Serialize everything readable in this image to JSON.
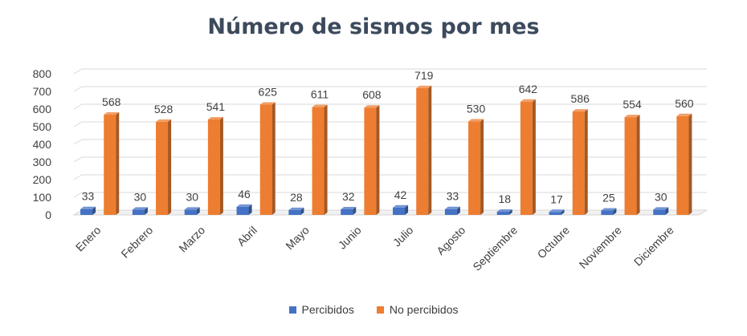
{
  "chart_data": {
    "type": "bar",
    "title": "Número de sismos por mes",
    "categories": [
      "Enero",
      "Febrero",
      "Marzo",
      "Abril",
      "Mayo",
      "Junio",
      "Julio",
      "Agosto",
      "Septiembre",
      "Octubre",
      "Noviembre",
      "Diciembre"
    ],
    "series": [
      {
        "name": "Percibidos",
        "values": [
          33,
          30,
          30,
          46,
          28,
          32,
          42,
          33,
          18,
          17,
          25,
          30
        ],
        "color": "#4472c4"
      },
      {
        "name": "No percibidos",
        "values": [
          568,
          528,
          541,
          625,
          611,
          608,
          719,
          530,
          642,
          586,
          554,
          560
        ],
        "color": "#ed7d31"
      }
    ],
    "ylim": [
      0,
      800
    ],
    "yticks": [
      0,
      100,
      200,
      300,
      400,
      500,
      600,
      700,
      800
    ],
    "grid": true,
    "legend_position": "bottom",
    "data_labels": true,
    "style": "3d-column"
  }
}
